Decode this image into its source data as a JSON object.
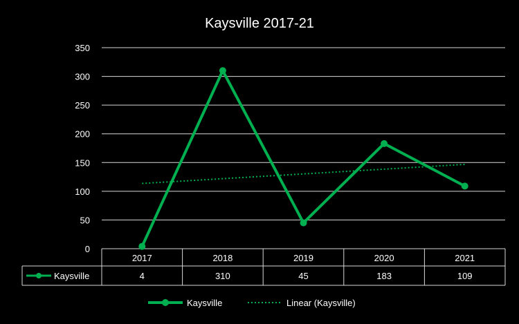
{
  "chart_data": {
    "type": "line",
    "title": "Kaysville 2017-21",
    "categories": [
      "2017",
      "2018",
      "2019",
      "2020",
      "2021"
    ],
    "series": [
      {
        "name": "Kaysville",
        "values": [
          4,
          310,
          45,
          183,
          109
        ],
        "color": "#00b050"
      }
    ],
    "trendline": {
      "name": "Linear (Kaysville)",
      "type": "linear",
      "color": "#00b050",
      "style": "dotted"
    },
    "yticks": [
      0,
      50,
      100,
      150,
      200,
      250,
      300,
      350
    ],
    "ylim": [
      0,
      350
    ],
    "xlabel": "",
    "ylabel": "",
    "grid": true,
    "data_table": true,
    "legend_position": "bottom",
    "background": "#000000",
    "text_color": "#ffffff"
  }
}
